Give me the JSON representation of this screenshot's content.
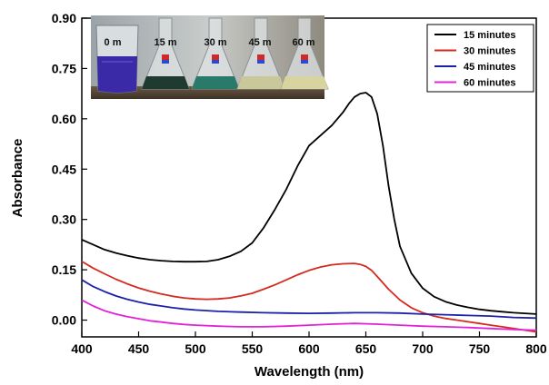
{
  "chart_data": {
    "type": "line",
    "xlabel": "Wavelength (nm)",
    "ylabel": "Absorbance",
    "xlim": [
      400,
      800
    ],
    "ylim": [
      -0.05,
      0.9
    ],
    "x_ticks": [
      "400",
      "450",
      "500",
      "550",
      "600",
      "650",
      "700",
      "750",
      "800"
    ],
    "y_ticks": [
      "0.00",
      "0.15",
      "0.30",
      "0.45",
      "0.60",
      "0.75",
      "0.90"
    ],
    "y_tick_values": [
      0.0,
      0.15,
      0.3,
      0.45,
      0.6,
      0.75,
      0.9
    ],
    "x_tick_values": [
      400,
      450,
      500,
      550,
      600,
      650,
      700,
      750,
      800
    ],
    "grid": false,
    "legend_placement": "top-right",
    "series": [
      {
        "name": "15 minutes",
        "color": "#000000",
        "x": [
          400,
          410,
          420,
          430,
          440,
          450,
          460,
          470,
          480,
          490,
          500,
          510,
          520,
          530,
          540,
          550,
          560,
          570,
          580,
          590,
          600,
          610,
          620,
          630,
          635,
          640,
          645,
          650,
          655,
          660,
          665,
          670,
          675,
          680,
          690,
          700,
          710,
          720,
          730,
          740,
          750,
          760,
          770,
          780,
          790,
          800
        ],
        "y": [
          0.24,
          0.225,
          0.21,
          0.2,
          0.192,
          0.185,
          0.18,
          0.177,
          0.175,
          0.174,
          0.174,
          0.175,
          0.18,
          0.19,
          0.205,
          0.23,
          0.275,
          0.33,
          0.39,
          0.46,
          0.52,
          0.55,
          0.58,
          0.62,
          0.645,
          0.665,
          0.675,
          0.678,
          0.665,
          0.615,
          0.52,
          0.4,
          0.3,
          0.22,
          0.14,
          0.095,
          0.07,
          0.055,
          0.045,
          0.038,
          0.032,
          0.028,
          0.025,
          0.022,
          0.02,
          0.018
        ]
      },
      {
        "name": "30 minutes",
        "color": "#d42a20",
        "x": [
          400,
          410,
          420,
          430,
          440,
          450,
          460,
          470,
          480,
          490,
          500,
          510,
          520,
          530,
          540,
          550,
          560,
          570,
          580,
          590,
          600,
          610,
          620,
          630,
          640,
          645,
          650,
          655,
          660,
          670,
          680,
          690,
          700,
          710,
          720,
          730,
          740,
          750,
          760,
          770,
          780,
          790,
          800
        ],
        "y": [
          0.175,
          0.155,
          0.138,
          0.122,
          0.108,
          0.096,
          0.086,
          0.078,
          0.071,
          0.066,
          0.063,
          0.062,
          0.063,
          0.066,
          0.072,
          0.08,
          0.092,
          0.105,
          0.12,
          0.135,
          0.148,
          0.158,
          0.165,
          0.168,
          0.169,
          0.166,
          0.16,
          0.148,
          0.13,
          0.092,
          0.06,
          0.037,
          0.022,
          0.012,
          0.005,
          0.0,
          -0.005,
          -0.01,
          -0.015,
          -0.02,
          -0.025,
          -0.03,
          -0.035
        ]
      },
      {
        "name": "45 minutes",
        "color": "#1a22a8",
        "x": [
          400,
          410,
          420,
          430,
          440,
          450,
          460,
          470,
          480,
          490,
          500,
          520,
          540,
          560,
          580,
          600,
          620,
          640,
          660,
          680,
          700,
          720,
          740,
          760,
          780,
          800
        ],
        "y": [
          0.12,
          0.1,
          0.085,
          0.072,
          0.062,
          0.054,
          0.047,
          0.042,
          0.037,
          0.033,
          0.03,
          0.026,
          0.024,
          0.022,
          0.021,
          0.02,
          0.021,
          0.022,
          0.022,
          0.021,
          0.018,
          0.016,
          0.014,
          0.012,
          0.008,
          0.006
        ]
      },
      {
        "name": "60 minutes",
        "color": "#e023d8",
        "x": [
          400,
          410,
          420,
          430,
          440,
          450,
          460,
          470,
          480,
          490,
          500,
          520,
          540,
          560,
          580,
          600,
          620,
          640,
          660,
          680,
          700,
          720,
          740,
          760,
          780,
          800
        ],
        "y": [
          0.06,
          0.042,
          0.028,
          0.018,
          0.01,
          0.004,
          -0.002,
          -0.006,
          -0.01,
          -0.013,
          -0.015,
          -0.018,
          -0.02,
          -0.02,
          -0.018,
          -0.015,
          -0.012,
          -0.01,
          -0.012,
          -0.015,
          -0.018,
          -0.02,
          -0.022,
          -0.025,
          -0.028,
          -0.03
        ]
      }
    ]
  },
  "inset_photo": {
    "labels": [
      "0 m",
      "15 m",
      "30 m",
      "45 m",
      "60 m"
    ],
    "liquid_colors": [
      "#3b2aa8",
      "#1f3a30",
      "#2a7a6a",
      "#c8c89a",
      "#d8d4a0"
    ]
  }
}
